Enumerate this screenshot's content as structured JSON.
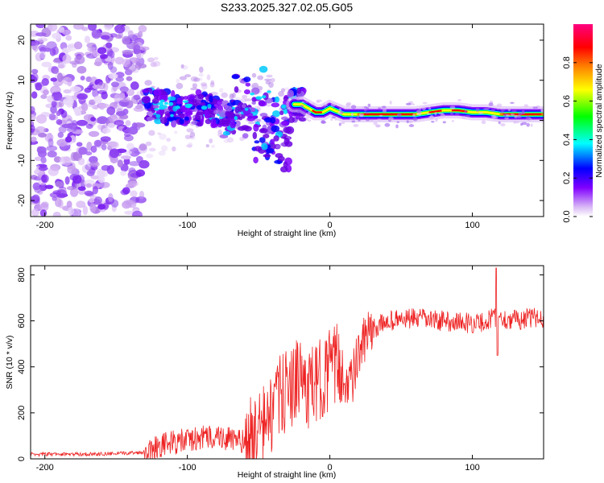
{
  "title": "S233.2025.327.02.05.G05",
  "chart_data": [
    {
      "type": "heatmap",
      "xlabel": "Height of straight line (km)",
      "ylabel": "Frequency (Hz)",
      "xlim": [
        -210,
        150
      ],
      "ylim": [
        -24,
        24
      ],
      "xticks": [
        -200,
        -100,
        0,
        100
      ],
      "yticks": [
        -20,
        -10,
        0,
        10,
        20
      ],
      "ridge": {
        "x": [
          -130,
          -110,
          -90,
          -70,
          -60,
          -50,
          -40,
          -35,
          -30,
          -20,
          -10,
          -5,
          0,
          10,
          30,
          60,
          70,
          80,
          90,
          100,
          110,
          120,
          150
        ],
        "y": [
          4,
          3,
          3,
          2,
          3,
          6,
          5,
          3,
          4,
          4,
          2,
          2,
          3,
          1.5,
          1.5,
          1.5,
          2,
          2.5,
          2.5,
          2,
          2,
          1.5,
          1.5
        ]
      }
    },
    {
      "type": "line",
      "xlabel": "Height of straight line (km)",
      "ylabel": "SNR (10 * v/v)",
      "xlim": [
        -210,
        150
      ],
      "ylim": [
        0,
        840
      ],
      "xticks": [
        -200,
        -100,
        0,
        100
      ],
      "yticks": [
        0,
        200,
        400,
        600,
        800
      ],
      "series": [
        {
          "name": "SNR",
          "x": [
            -210,
            -180,
            -150,
            -130,
            -120,
            -100,
            -80,
            -60,
            -50,
            -40,
            -35,
            -30,
            -25,
            -20,
            -15,
            -10,
            -5,
            0,
            5,
            10,
            15,
            20,
            25,
            30,
            40,
            60,
            80,
            100,
            110,
            115,
            120,
            130,
            150
          ],
          "y": [
            20,
            20,
            22,
            30,
            60,
            80,
            100,
            70,
            120,
            200,
            270,
            300,
            330,
            350,
            300,
            320,
            360,
            390,
            410,
            350,
            330,
            450,
            520,
            560,
            600,
            610,
            600,
            590,
            595,
            620,
            610,
            605,
            615
          ]
        }
      ]
    }
  ],
  "colorbar": {
    "label": "Normalized spectral amplitude",
    "ticks": [
      "0.0",
      "0.2",
      "0.4",
      "0.6",
      "0.8"
    ],
    "colors": [
      "#ffffff",
      "#d9b8f5",
      "#8000ff",
      "#0000ff",
      "#00ffff",
      "#00ff00",
      "#ffff00",
      "#ff8000",
      "#ff0000",
      "#ff0080"
    ]
  }
}
